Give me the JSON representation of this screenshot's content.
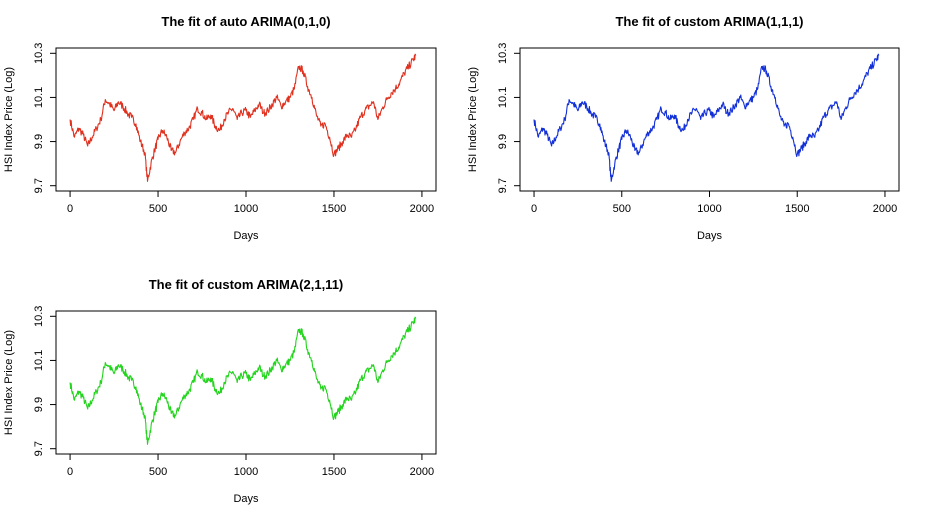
{
  "chart_data": [
    {
      "type": "line",
      "title": "The fit of auto ARIMA(0,1,0)",
      "xlabel": "Days",
      "ylabel": "HSI Index Price (Log)",
      "xlim": [
        0,
        2000
      ],
      "ylim": [
        9.7,
        10.3
      ],
      "xticks": [
        0,
        500,
        1000,
        1500,
        2000
      ],
      "yticks": [
        9.7,
        9.9,
        10.1,
        10.3
      ],
      "color": "#e0301e",
      "series": [
        {
          "x": [
            0,
            25,
            50,
            75,
            100,
            125,
            150,
            175,
            200,
            225,
            250,
            275,
            300,
            325,
            350,
            375,
            400,
            425,
            440,
            460,
            480,
            500,
            525,
            550,
            575,
            600,
            625,
            650,
            675,
            700,
            725,
            750,
            775,
            800,
            825,
            850,
            875,
            900,
            925,
            950,
            975,
            1000,
            1025,
            1050,
            1075,
            1100,
            1125,
            1150,
            1175,
            1200,
            1225,
            1250,
            1275,
            1300,
            1325,
            1350,
            1375,
            1400,
            1425,
            1450,
            1475,
            1500,
            1525,
            1550,
            1575,
            1600,
            1625,
            1650,
            1675,
            1700,
            1725,
            1750,
            1775,
            1800,
            1825,
            1850,
            1875,
            1900,
            1925,
            1950,
            1965
          ],
          "y": [
            10.0,
            9.92,
            9.96,
            9.93,
            9.88,
            9.92,
            9.96,
            10.0,
            10.09,
            10.07,
            10.04,
            10.08,
            10.06,
            10.03,
            10.01,
            9.98,
            9.9,
            9.85,
            9.72,
            9.8,
            9.86,
            9.91,
            9.95,
            9.92,
            9.86,
            9.85,
            9.9,
            9.94,
            9.96,
            10.0,
            10.05,
            10.03,
            10.0,
            10.02,
            9.97,
            9.95,
            10.0,
            10.03,
            10.05,
            10.0,
            10.03,
            10.04,
            10.01,
            10.04,
            10.07,
            10.03,
            10.04,
            10.07,
            10.1,
            10.06,
            10.08,
            10.1,
            10.14,
            10.24,
            10.22,
            10.15,
            10.1,
            10.02,
            9.97,
            9.98,
            9.92,
            9.84,
            9.87,
            9.9,
            9.93,
            9.92,
            9.96,
            10.01,
            10.04,
            10.06,
            10.08,
            10.0,
            10.05,
            10.09,
            10.12,
            10.14,
            10.17,
            10.21,
            10.24,
            10.27,
            10.29
          ]
        }
      ]
    },
    {
      "type": "line",
      "title": "The fit of custom ARIMA(1,1,1)",
      "xlabel": "Days",
      "ylabel": "HSI Index Price (Log)",
      "xlim": [
        0,
        2000
      ],
      "ylim": [
        9.7,
        10.3
      ],
      "xticks": [
        0,
        500,
        1000,
        1500,
        2000
      ],
      "yticks": [
        9.7,
        9.9,
        10.1,
        10.3
      ],
      "color": "#1230d8",
      "series": [
        {
          "x": [
            0,
            25,
            50,
            75,
            100,
            125,
            150,
            175,
            200,
            225,
            250,
            275,
            300,
            325,
            350,
            375,
            400,
            425,
            440,
            460,
            480,
            500,
            525,
            550,
            575,
            600,
            625,
            650,
            675,
            700,
            725,
            750,
            775,
            800,
            825,
            850,
            875,
            900,
            925,
            950,
            975,
            1000,
            1025,
            1050,
            1075,
            1100,
            1125,
            1150,
            1175,
            1200,
            1225,
            1250,
            1275,
            1300,
            1325,
            1350,
            1375,
            1400,
            1425,
            1450,
            1475,
            1500,
            1525,
            1550,
            1575,
            1600,
            1625,
            1650,
            1675,
            1700,
            1725,
            1750,
            1775,
            1800,
            1825,
            1850,
            1875,
            1900,
            1925,
            1950,
            1965
          ],
          "y": [
            10.0,
            9.92,
            9.96,
            9.93,
            9.88,
            9.92,
            9.96,
            10.0,
            10.09,
            10.07,
            10.04,
            10.08,
            10.06,
            10.03,
            10.01,
            9.98,
            9.9,
            9.85,
            9.72,
            9.8,
            9.86,
            9.91,
            9.95,
            9.92,
            9.86,
            9.85,
            9.9,
            9.94,
            9.96,
            10.0,
            10.05,
            10.03,
            10.0,
            10.02,
            9.97,
            9.95,
            10.0,
            10.03,
            10.05,
            10.0,
            10.03,
            10.04,
            10.01,
            10.04,
            10.07,
            10.03,
            10.04,
            10.07,
            10.1,
            10.06,
            10.08,
            10.1,
            10.14,
            10.24,
            10.22,
            10.15,
            10.1,
            10.02,
            9.97,
            9.98,
            9.92,
            9.84,
            9.87,
            9.9,
            9.93,
            9.92,
            9.96,
            10.01,
            10.04,
            10.06,
            10.08,
            10.0,
            10.05,
            10.09,
            10.12,
            10.14,
            10.17,
            10.21,
            10.24,
            10.27,
            10.29
          ]
        }
      ]
    },
    {
      "type": "line",
      "title": "The fit of custom ARIMA(2,1,11)",
      "xlabel": "Days",
      "ylabel": "HSI Index Price (Log)",
      "xlim": [
        0,
        2000
      ],
      "ylim": [
        9.7,
        10.3
      ],
      "xticks": [
        0,
        500,
        1000,
        1500,
        2000
      ],
      "yticks": [
        9.7,
        9.9,
        10.1,
        10.3
      ],
      "color": "#22d41c",
      "series": [
        {
          "x": [
            0,
            25,
            50,
            75,
            100,
            125,
            150,
            175,
            200,
            225,
            250,
            275,
            300,
            325,
            350,
            375,
            400,
            425,
            440,
            460,
            480,
            500,
            525,
            550,
            575,
            600,
            625,
            650,
            675,
            700,
            725,
            750,
            775,
            800,
            825,
            850,
            875,
            900,
            925,
            950,
            975,
            1000,
            1025,
            1050,
            1075,
            1100,
            1125,
            1150,
            1175,
            1200,
            1225,
            1250,
            1275,
            1300,
            1325,
            1350,
            1375,
            1400,
            1425,
            1450,
            1475,
            1500,
            1525,
            1550,
            1575,
            1600,
            1625,
            1650,
            1675,
            1700,
            1725,
            1750,
            1775,
            1800,
            1825,
            1850,
            1875,
            1900,
            1925,
            1950,
            1965
          ],
          "y": [
            10.0,
            9.92,
            9.96,
            9.93,
            9.88,
            9.92,
            9.96,
            10.0,
            10.09,
            10.07,
            10.04,
            10.08,
            10.06,
            10.03,
            10.01,
            9.98,
            9.9,
            9.85,
            9.72,
            9.8,
            9.86,
            9.91,
            9.95,
            9.92,
            9.86,
            9.85,
            9.9,
            9.94,
            9.96,
            10.0,
            10.05,
            10.03,
            10.0,
            10.02,
            9.97,
            9.95,
            10.0,
            10.03,
            10.05,
            10.0,
            10.03,
            10.04,
            10.01,
            10.04,
            10.07,
            10.03,
            10.04,
            10.07,
            10.1,
            10.06,
            10.08,
            10.1,
            10.14,
            10.24,
            10.22,
            10.15,
            10.1,
            10.02,
            9.97,
            9.98,
            9.92,
            9.84,
            9.87,
            9.9,
            9.93,
            9.92,
            9.96,
            10.01,
            10.04,
            10.06,
            10.08,
            10.0,
            10.05,
            10.09,
            10.12,
            10.14,
            10.17,
            10.21,
            10.24,
            10.27,
            10.29
          ]
        }
      ]
    }
  ]
}
